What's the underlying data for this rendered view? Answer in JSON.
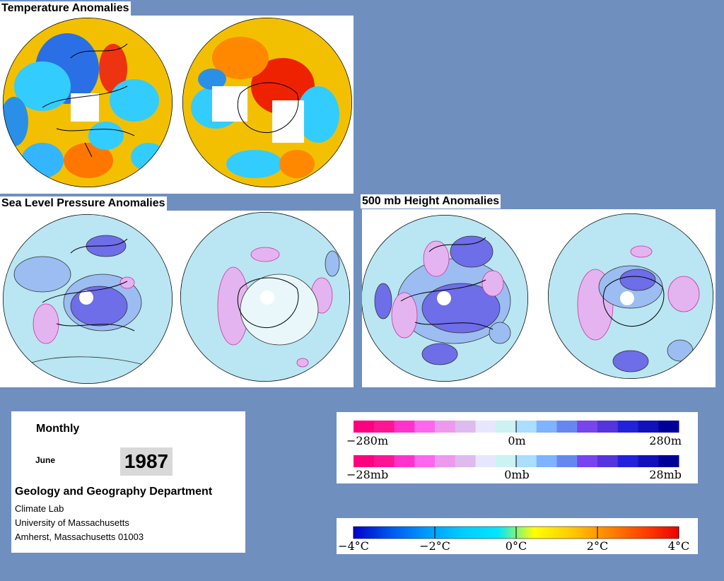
{
  "titles": {
    "temperature": "Temperature Anomalies",
    "slp": "Sea Level Pressure Anomalies",
    "height500": "500 mb Height Anomalies"
  },
  "info": {
    "frequency": "Monthly",
    "month": "June",
    "year": "1987",
    "department": "Geology and Geography Department",
    "lab": "Climate Lab",
    "university": "University of Massachusetts",
    "address": "Amherst, Massachusetts 01003"
  },
  "legends": {
    "height": {
      "labels": [
        "−280m",
        "0m",
        "280m"
      ],
      "colors": [
        "#ff0080",
        "#ff1493",
        "#ff33cc",
        "#ff66ee",
        "#ee99ee",
        "#ddbbee",
        "#e6e6ff",
        "#ccf2f2",
        "#aaddff",
        "#7fb2ff",
        "#6688ee",
        "#7744ee",
        "#5533dd",
        "#2222dd",
        "#1111bb",
        "#000099"
      ]
    },
    "pressure": {
      "labels": [
        "−28mb",
        "0mb",
        "28mb"
      ]
    },
    "temperature": {
      "labels": [
        "−4°C",
        "−2°C",
        "0°C",
        "2°C",
        "4°C"
      ],
      "gradient": [
        "#0000cc",
        "#0055ee",
        "#0099ff",
        "#00ccff",
        "#00e6ff",
        "#ffff00",
        "#ffcc00",
        "#ff8800",
        "#ff4400",
        "#ee0000"
      ]
    }
  },
  "colors": {
    "background": "#6f8fbf",
    "ocean_temp": "#f2c000",
    "globe_base_pressure": "#b9e6f2",
    "negative_anomaly": "#6e6ee8",
    "positive_anomaly": "#e4b4f0"
  }
}
